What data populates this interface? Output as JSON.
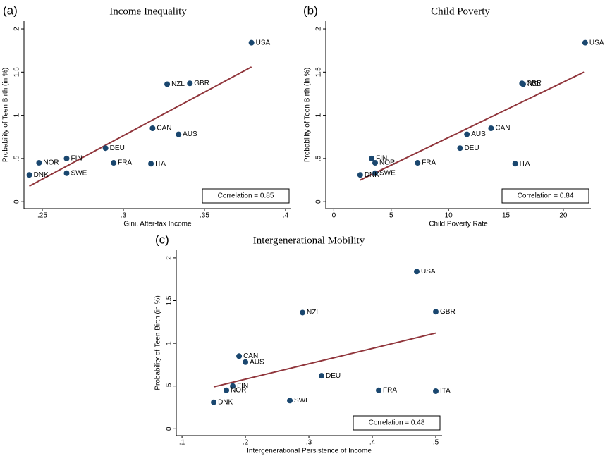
{
  "chart_data": [
    {
      "type": "scatter",
      "panel_label": "(a)",
      "title": "Income Inequality",
      "x_label": "Gini, After-tax Income",
      "y_label": "Probability of Teen Birth (in %)",
      "categories": [
        "USA",
        "GBR",
        "NZL",
        "CAN",
        "AUS",
        "DEU",
        "FIN",
        "NOR",
        "FRA",
        "ITA",
        "SWE",
        "DNK"
      ],
      "x": [
        0.379,
        0.341,
        0.327,
        0.318,
        0.334,
        0.289,
        0.265,
        0.248,
        0.294,
        0.317,
        0.265,
        0.242
      ],
      "values": [
        1.84,
        1.37,
        1.36,
        0.85,
        0.78,
        0.62,
        0.5,
        0.45,
        0.45,
        0.44,
        0.33,
        0.31
      ],
      "color": "#1a476f",
      "fit_line": {
        "x": [
          0.242,
          0.379
        ],
        "y": [
          0.18,
          1.56
        ],
        "color": "#90353b"
      },
      "annotation": "Correlation = 0.85",
      "xlim": [
        0.2387,
        0.4035
      ],
      "xticks": [
        {
          "value": 0.25,
          "label": ".25"
        },
        {
          "value": 0.3,
          "label": ".3"
        },
        {
          "value": 0.35,
          "label": ".35"
        },
        {
          "value": 0.4,
          "label": ".4"
        }
      ],
      "ylim": [
        -0.08,
        2.09
      ],
      "yticks": [
        0,
        {
          "value": 0.5,
          "label": ".5"
        },
        1,
        1.5,
        2
      ]
    },
    {
      "type": "scatter",
      "panel_label": "(b)",
      "title": "Child Poverty",
      "x_label": "Child Poverty Rate",
      "y_label": "Probability of Teen Birth (in %)",
      "categories": [
        "USA",
        "GBR",
        "NZL",
        "CAN",
        "AUS",
        "DEU",
        "FIN",
        "NOR",
        "FRA",
        "ITA",
        "SWE",
        "DNK"
      ],
      "x": [
        21.9,
        16.4,
        16.5,
        13.7,
        11.6,
        11.0,
        3.3,
        3.6,
        7.3,
        15.8,
        3.6,
        2.3
      ],
      "values": [
        1.84,
        1.37,
        1.36,
        0.85,
        0.78,
        0.62,
        0.5,
        0.45,
        0.45,
        0.44,
        0.33,
        0.31
      ],
      "color": "#1a476f",
      "fit_line": {
        "x": [
          2.3,
          21.8
        ],
        "y": [
          0.25,
          1.5
        ],
        "color": "#90353b"
      },
      "annotation": "Correlation = 0.84",
      "xlim": [
        -0.7,
        22.4
      ],
      "xticks": [
        0,
        5,
        10,
        15,
        20
      ],
      "ylim": [
        -0.08,
        2.09
      ],
      "yticks": [
        0,
        {
          "value": 0.5,
          "label": ".5"
        },
        1,
        1.5,
        2
      ]
    },
    {
      "type": "scatter",
      "panel_label": "(c)",
      "title": "Intergenerational Mobility",
      "x_label": "Intergenerational Persistence of Income",
      "y_label": "Probability of Teen Birth (in %)",
      "categories": [
        "USA",
        "GBR",
        "NZL",
        "CAN",
        "AUS",
        "DEU",
        "FIN",
        "NOR",
        "FRA",
        "ITA",
        "SWE",
        "DNK"
      ],
      "x": [
        0.47,
        0.5,
        0.29,
        0.19,
        0.2,
        0.32,
        0.18,
        0.17,
        0.41,
        0.5,
        0.27,
        0.15
      ],
      "values": [
        1.84,
        1.37,
        1.36,
        0.85,
        0.78,
        0.62,
        0.5,
        0.45,
        0.45,
        0.44,
        0.33,
        0.31
      ],
      "color": "#1a476f",
      "fit_line": {
        "x": [
          0.15,
          0.5
        ],
        "y": [
          0.49,
          1.12
        ],
        "color": "#90353b"
      },
      "annotation": "Correlation = 0.48",
      "xlim": [
        0.091,
        0.51
      ],
      "xticks": [
        {
          "value": 0.1,
          "label": ".1"
        },
        {
          "value": 0.2,
          "label": ".2"
        },
        {
          "value": 0.3,
          "label": ".3"
        },
        {
          "value": 0.4,
          "label": ".4"
        },
        {
          "value": 0.5,
          "label": ".5"
        }
      ],
      "ylim": [
        -0.08,
        2.09
      ],
      "yticks": [
        0,
        {
          "value": 0.5,
          "label": ".5"
        },
        1,
        1.5,
        2
      ]
    }
  ]
}
